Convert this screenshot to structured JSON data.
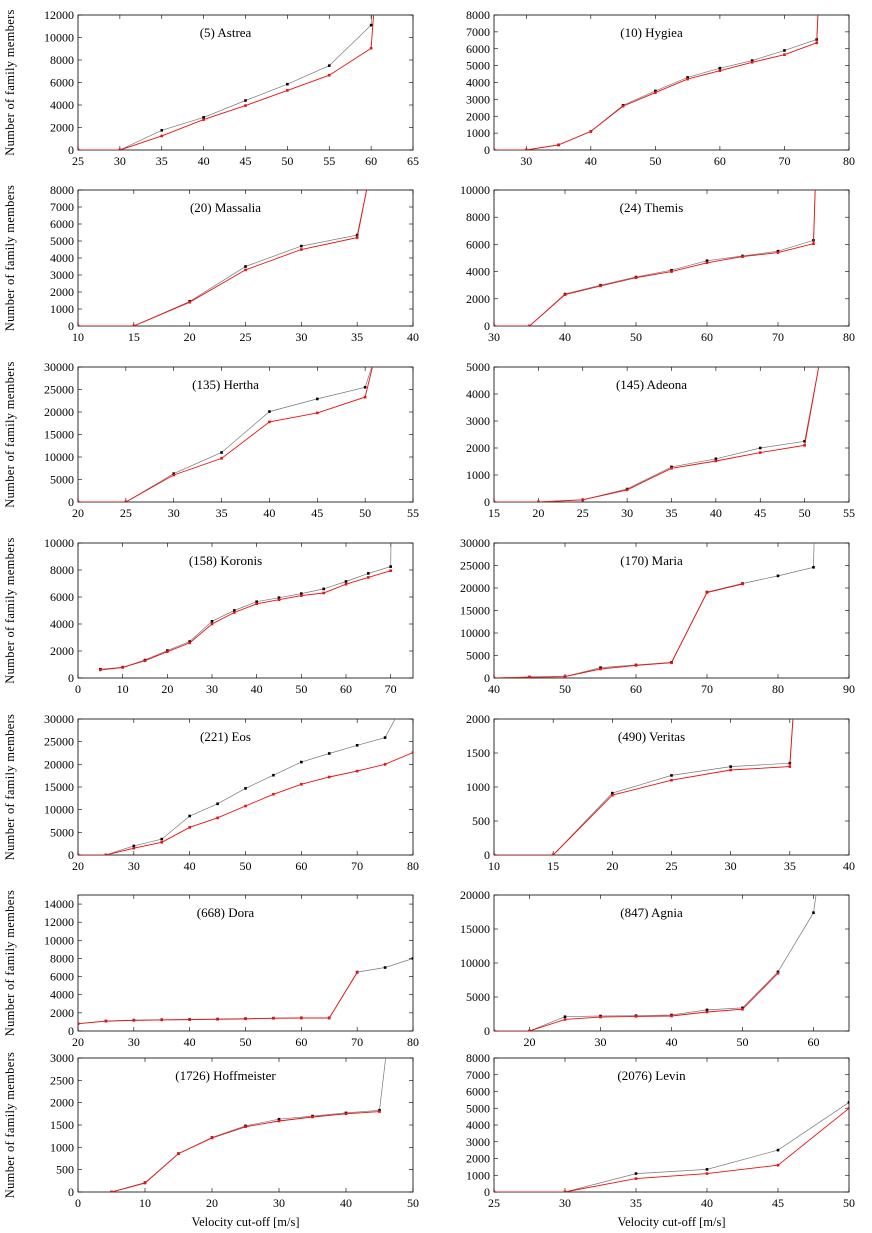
{
  "axis_labels": {
    "y": "Number of family members",
    "x": "Velocity cut-off [m/s]"
  },
  "colors": {
    "series_black": "#000000",
    "series_black_line": "#777777",
    "series_red": "#ee1111"
  },
  "chart_data": [
    {
      "type": "line",
      "title": "(5) Astrea",
      "xlim": [
        25,
        65
      ],
      "ylim": [
        0,
        12000
      ],
      "xticks": [
        25,
        30,
        35,
        40,
        45,
        50,
        55,
        60,
        65
      ],
      "yticks": [
        0,
        2000,
        4000,
        6000,
        8000,
        10000,
        12000
      ],
      "series": [
        {
          "color": "black",
          "x": [
            25,
            30,
            35,
            40,
            45,
            50,
            55,
            60,
            60.3
          ],
          "y": [
            0,
            0,
            1750,
            2900,
            4400,
            5850,
            7500,
            11100,
            14000
          ]
        },
        {
          "color": "red",
          "x": [
            25,
            30,
            35,
            40,
            45,
            50,
            55,
            60,
            60.5
          ],
          "y": [
            0,
            0,
            1250,
            2700,
            3950,
            5300,
            6650,
            9050,
            14000
          ]
        }
      ]
    },
    {
      "type": "line",
      "title": "(10) Hygiea",
      "xlim": [
        25,
        80
      ],
      "ylim": [
        0,
        8000
      ],
      "xticks": [
        30,
        40,
        50,
        60,
        70,
        80
      ],
      "yticks": [
        0,
        1000,
        2000,
        3000,
        4000,
        5000,
        6000,
        7000,
        8000
      ],
      "series": [
        {
          "color": "black",
          "x": [
            25,
            30,
            35,
            40,
            45,
            50,
            55,
            60,
            65,
            70,
            75,
            75.3
          ],
          "y": [
            0,
            0,
            300,
            1100,
            2650,
            3500,
            4300,
            4850,
            5300,
            5900,
            6550,
            9000
          ]
        },
        {
          "color": "red",
          "x": [
            25,
            30,
            35,
            40,
            45,
            50,
            55,
            60,
            65,
            70,
            75,
            75.3
          ],
          "y": [
            0,
            0,
            300,
            1100,
            2600,
            3400,
            4200,
            4700,
            5200,
            5650,
            6350,
            9000
          ]
        }
      ]
    },
    {
      "type": "line",
      "title": "(20) Massalia",
      "xlim": [
        10,
        40
      ],
      "ylim": [
        0,
        8000
      ],
      "xticks": [
        10,
        15,
        20,
        25,
        30,
        35,
        40
      ],
      "yticks": [
        0,
        1000,
        2000,
        3000,
        4000,
        5000,
        6000,
        7000,
        8000
      ],
      "series": [
        {
          "color": "black",
          "x": [
            10,
            15,
            20,
            25,
            30,
            35,
            36
          ],
          "y": [
            0,
            0,
            1450,
            3500,
            4700,
            5350,
            8500
          ]
        },
        {
          "color": "red",
          "x": [
            10,
            15,
            20,
            25,
            30,
            35,
            36
          ],
          "y": [
            0,
            0,
            1400,
            3300,
            4500,
            5200,
            8500
          ]
        }
      ]
    },
    {
      "type": "line",
      "title": "(24) Themis",
      "xlim": [
        30,
        80
      ],
      "ylim": [
        0,
        10000
      ],
      "xticks": [
        30,
        40,
        50,
        60,
        70,
        80
      ],
      "yticks": [
        0,
        2000,
        4000,
        6000,
        8000,
        10000
      ],
      "series": [
        {
          "color": "black",
          "x": [
            30,
            35,
            40,
            45,
            50,
            55,
            60,
            65,
            70,
            75,
            75.3
          ],
          "y": [
            0,
            0,
            2350,
            3000,
            3600,
            4100,
            4800,
            5150,
            5500,
            6300,
            11000
          ]
        },
        {
          "color": "red",
          "x": [
            30,
            35,
            40,
            45,
            50,
            55,
            60,
            65,
            70,
            75,
            75.3
          ],
          "y": [
            0,
            0,
            2300,
            2950,
            3550,
            4000,
            4650,
            5100,
            5400,
            6050,
            11000
          ]
        }
      ]
    },
    {
      "type": "line",
      "title": "(135) Hertha",
      "xlim": [
        20,
        55
      ],
      "ylim": [
        0,
        30000
      ],
      "xticks": [
        20,
        25,
        30,
        35,
        40,
        45,
        50,
        55
      ],
      "yticks": [
        0,
        5000,
        10000,
        15000,
        20000,
        25000,
        30000
      ],
      "series": [
        {
          "color": "black",
          "x": [
            20,
            25,
            30,
            35,
            40,
            45,
            50,
            51
          ],
          "y": [
            0,
            0,
            6300,
            11000,
            20100,
            22900,
            25500,
            32000
          ]
        },
        {
          "color": "red",
          "x": [
            20,
            25,
            30,
            35,
            40,
            45,
            50,
            51
          ],
          "y": [
            0,
            0,
            6000,
            9700,
            17800,
            19800,
            23300,
            32000
          ]
        }
      ]
    },
    {
      "type": "line",
      "title": "(145) Adeona",
      "xlim": [
        15,
        55
      ],
      "ylim": [
        0,
        5000
      ],
      "xticks": [
        15,
        20,
        25,
        30,
        35,
        40,
        45,
        50,
        55
      ],
      "yticks": [
        0,
        1000,
        2000,
        3000,
        4000,
        5000
      ],
      "series": [
        {
          "color": "black",
          "x": [
            15,
            20,
            25,
            30,
            35,
            40,
            45,
            50,
            51.7
          ],
          "y": [
            0,
            0,
            80,
            480,
            1300,
            1600,
            2000,
            2250,
            5200
          ]
        },
        {
          "color": "red",
          "x": [
            15,
            20,
            25,
            30,
            35,
            40,
            45,
            50,
            51.7
          ],
          "y": [
            0,
            0,
            80,
            450,
            1250,
            1520,
            1830,
            2100,
            5200
          ]
        }
      ]
    },
    {
      "type": "line",
      "title": "(158) Koronis",
      "xlim": [
        0,
        75
      ],
      "ylim": [
        0,
        10000
      ],
      "xticks": [
        0,
        10,
        20,
        30,
        40,
        50,
        60,
        70
      ],
      "yticks": [
        0,
        2000,
        4000,
        6000,
        8000,
        10000
      ],
      "series": [
        {
          "color": "black",
          "x": [
            5,
            10,
            15,
            20,
            25,
            30,
            35,
            40,
            45,
            50,
            55,
            60,
            65,
            70,
            70.1
          ],
          "y": [
            650,
            800,
            1330,
            2030,
            2700,
            4200,
            5000,
            5650,
            5950,
            6250,
            6600,
            7150,
            7750,
            8250,
            10500
          ]
        },
        {
          "color": "red",
          "x": [
            5,
            10,
            15,
            20,
            25,
            30,
            35,
            40,
            45,
            50,
            55,
            60,
            65,
            70
          ],
          "y": [
            600,
            780,
            1280,
            1950,
            2600,
            4000,
            4850,
            5500,
            5800,
            6100,
            6300,
            6950,
            7450,
            7950
          ]
        }
      ]
    },
    {
      "type": "line",
      "title": "(170) Maria",
      "xlim": [
        40,
        90
      ],
      "ylim": [
        0,
        30000
      ],
      "xticks": [
        40,
        50,
        60,
        70,
        80,
        90
      ],
      "yticks": [
        0,
        5000,
        10000,
        15000,
        20000,
        25000,
        30000
      ],
      "series": [
        {
          "color": "black",
          "x": [
            40,
            45,
            50,
            55,
            60,
            65,
            70,
            75,
            80,
            85,
            85.1
          ],
          "y": [
            0,
            200,
            300,
            2300,
            2900,
            3500,
            19100,
            21000,
            22700,
            24600,
            32000
          ]
        },
        {
          "color": "red",
          "x": [
            40,
            45,
            50,
            55,
            60,
            65,
            70,
            75
          ],
          "y": [
            0,
            200,
            300,
            2000,
            2800,
            3400,
            19000,
            20900
          ]
        }
      ]
    },
    {
      "type": "line",
      "title": "(221) Eos",
      "xlim": [
        20,
        80
      ],
      "ylim": [
        0,
        30000
      ],
      "xticks": [
        20,
        30,
        40,
        50,
        60,
        70,
        80
      ],
      "yticks": [
        0,
        5000,
        10000,
        15000,
        20000,
        25000,
        30000
      ],
      "series": [
        {
          "color": "black",
          "x": [
            20,
            25,
            30,
            35,
            40,
            45,
            50,
            55,
            60,
            65,
            70,
            75,
            77
          ],
          "y": [
            0,
            0,
            2000,
            3500,
            8600,
            11300,
            14700,
            17600,
            20500,
            22400,
            24200,
            25900,
            30500
          ]
        },
        {
          "color": "red",
          "x": [
            20,
            25,
            30,
            35,
            40,
            45,
            50,
            55,
            60,
            65,
            70,
            75,
            80
          ],
          "y": [
            0,
            0,
            1500,
            2800,
            6100,
            8200,
            10800,
            13400,
            15600,
            17200,
            18500,
            20000,
            22600
          ]
        }
      ]
    },
    {
      "type": "line",
      "title": "(490) Veritas",
      "xlim": [
        10,
        40
      ],
      "ylim": [
        0,
        2000
      ],
      "xticks": [
        10,
        15,
        20,
        25,
        30,
        35,
        40
      ],
      "yticks": [
        0,
        500,
        1000,
        1500,
        2000
      ],
      "series": [
        {
          "color": "black",
          "x": [
            10,
            15,
            20,
            25,
            30,
            35,
            35.3
          ],
          "y": [
            0,
            0,
            910,
            1170,
            1300,
            1350,
            2100
          ]
        },
        {
          "color": "red",
          "x": [
            10,
            15,
            20,
            25,
            30,
            35,
            35.3
          ],
          "y": [
            0,
            0,
            880,
            1100,
            1250,
            1300,
            2100
          ]
        }
      ]
    },
    {
      "type": "line",
      "title": "(668) Dora",
      "xlim": [
        20,
        80
      ],
      "ylim": [
        0,
        15000
      ],
      "xticks": [
        20,
        30,
        40,
        50,
        60,
        70,
        80
      ],
      "yticks": [
        0,
        2000,
        4000,
        6000,
        8000,
        10000,
        12000,
        14000
      ],
      "series": [
        {
          "color": "black",
          "x": [
            20,
            25,
            30,
            35,
            40,
            45,
            50,
            55,
            60,
            65,
            70,
            75,
            80
          ],
          "y": [
            800,
            1100,
            1200,
            1250,
            1280,
            1320,
            1370,
            1420,
            1450,
            1450,
            6500,
            7000,
            8000
          ]
        },
        {
          "color": "red",
          "x": [
            20,
            25,
            30,
            35,
            40,
            45,
            50,
            55,
            60,
            65,
            70
          ],
          "y": [
            800,
            1080,
            1170,
            1220,
            1250,
            1290,
            1340,
            1400,
            1430,
            1430,
            6450
          ]
        }
      ]
    },
    {
      "type": "line",
      "title": "(847) Agnia",
      "xlim": [
        15,
        65
      ],
      "ylim": [
        0,
        20000
      ],
      "xticks": [
        20,
        30,
        40,
        50,
        60
      ],
      "yticks": [
        0,
        5000,
        10000,
        15000,
        20000
      ],
      "series": [
        {
          "color": "black",
          "x": [
            15,
            20,
            25,
            30,
            35,
            40,
            45,
            50,
            55,
            60,
            60.5
          ],
          "y": [
            0,
            0,
            2100,
            2200,
            2250,
            2350,
            3100,
            3400,
            8700,
            17400,
            21000
          ]
        },
        {
          "color": "red",
          "x": [
            15,
            20,
            25,
            30,
            35,
            40,
            45,
            50,
            55
          ],
          "y": [
            0,
            0,
            1700,
            2050,
            2150,
            2200,
            2800,
            3200,
            8500
          ]
        }
      ]
    },
    {
      "type": "line",
      "title": "(1726) Hoffmeister",
      "xlim": [
        0,
        50
      ],
      "ylim": [
        0,
        3000
      ],
      "xticks": [
        0,
        10,
        20,
        30,
        40,
        50
      ],
      "yticks": [
        0,
        500,
        1000,
        1500,
        2000,
        2500,
        3000
      ],
      "series": [
        {
          "color": "black",
          "x": [
            5,
            10,
            15,
            20,
            25,
            30,
            35,
            40,
            45,
            46
          ],
          "y": [
            0,
            210,
            860,
            1220,
            1480,
            1630,
            1700,
            1770,
            1830,
            3100
          ]
        },
        {
          "color": "red",
          "x": [
            5,
            10,
            15,
            20,
            25,
            30,
            35,
            40,
            45
          ],
          "y": [
            0,
            200,
            860,
            1210,
            1460,
            1590,
            1680,
            1750,
            1800
          ]
        }
      ]
    },
    {
      "type": "line",
      "title": "(2076) Levin",
      "xlim": [
        25,
        50
      ],
      "ylim": [
        0,
        8000
      ],
      "xticks": [
        25,
        30,
        35,
        40,
        45,
        50
      ],
      "yticks": [
        0,
        1000,
        2000,
        3000,
        4000,
        5000,
        6000,
        7000,
        8000
      ],
      "series": [
        {
          "color": "black",
          "x": [
            25,
            30,
            35,
            40,
            45,
            50
          ],
          "y": [
            0,
            0,
            1100,
            1350,
            2500,
            5350
          ]
        },
        {
          "color": "red",
          "x": [
            25,
            30,
            35,
            40,
            45,
            50
          ],
          "y": [
            0,
            0,
            800,
            1100,
            1600,
            5000
          ]
        }
      ]
    }
  ]
}
